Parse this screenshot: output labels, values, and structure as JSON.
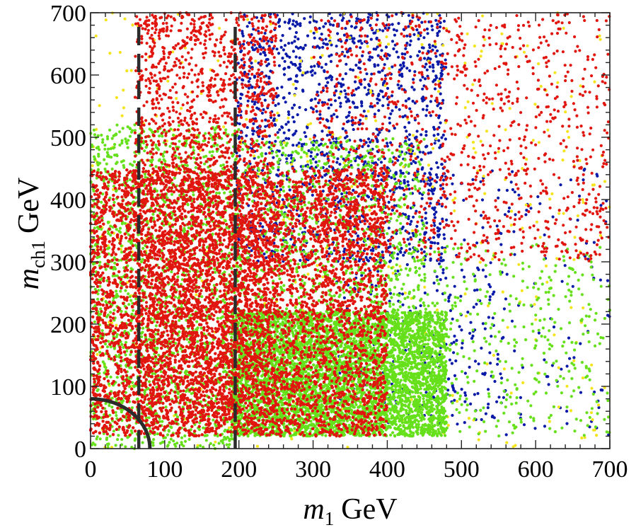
{
  "chart_data": {
    "type": "scatter",
    "title": "",
    "xlabel": {
      "var": "m",
      "sub": "1",
      "unit": "GeV"
    },
    "ylabel": {
      "var": "m",
      "sub": "ch1",
      "unit": "GeV"
    },
    "xlim": [
      0,
      700
    ],
    "ylim": [
      0,
      700
    ],
    "xticks": [
      "0",
      "100",
      "200",
      "300",
      "400",
      "500",
      "600",
      "700"
    ],
    "yticks": [
      "0",
      "100",
      "200",
      "300",
      "400",
      "500",
      "600",
      "700"
    ],
    "grid": false,
    "legend": "none",
    "reference_lines": {
      "vertical_dashed_x": [
        65,
        195
      ],
      "quarter_circle_radius": 80
    },
    "series": [
      {
        "color": "#0a1aa8",
        "regions": [
          {
            "x": [
              195,
              480
            ],
            "y": [
              300,
              700
            ],
            "n": 1500
          },
          {
            "x": [
              450,
              860
            ],
            "y": [
              20,
              450
            ],
            "n": 260
          },
          {
            "x": [
              330,
              560
            ],
            "y": [
              40,
              300
            ],
            "n": 220
          }
        ]
      },
      {
        "color": "#f4e41c",
        "regions": [
          {
            "x": [
              0,
              860
            ],
            "y": [
              0,
              700
            ],
            "n": 620
          }
        ]
      },
      {
        "color": "#66e01a",
        "regions": [
          {
            "x": [
              190,
              480
            ],
            "y": [
              20,
              220
            ],
            "n": 5200
          },
          {
            "x": [
              0,
              200
            ],
            "y": [
              0,
              520
            ],
            "n": 1800
          },
          {
            "x": [
              380,
              860
            ],
            "y": [
              20,
              330
            ],
            "n": 700
          },
          {
            "x": [
              200,
              450
            ],
            "y": [
              200,
              500
            ],
            "n": 900
          }
        ]
      },
      {
        "color": "#e0160f",
        "regions": [
          {
            "x": [
              0,
              400
            ],
            "y": [
              20,
              450
            ],
            "n": 15000
          },
          {
            "x": [
              60,
              250
            ],
            "y": [
              40,
              700
            ],
            "n": 2600
          },
          {
            "x": [
              300,
              700
            ],
            "y": [
              300,
              700
            ],
            "n": 1100
          }
        ]
      }
    ]
  }
}
